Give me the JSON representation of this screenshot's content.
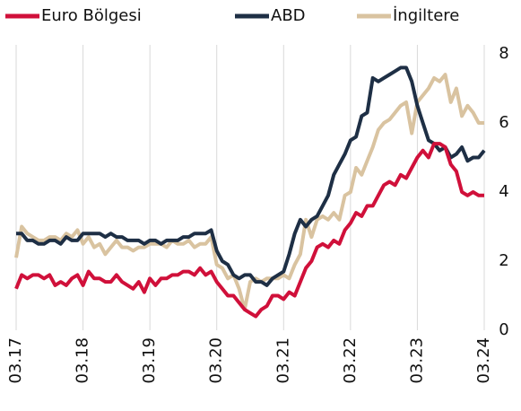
{
  "chart_data": {
    "type": "line",
    "categories": [
      "03.17",
      null,
      null,
      null,
      null,
      null,
      null,
      null,
      null,
      null,
      null,
      null,
      "03.18",
      null,
      null,
      null,
      null,
      null,
      null,
      null,
      null,
      null,
      null,
      null,
      "03.19",
      null,
      null,
      null,
      null,
      null,
      null,
      null,
      null,
      null,
      null,
      null,
      "03.20",
      null,
      null,
      null,
      null,
      null,
      null,
      null,
      null,
      null,
      null,
      null,
      "03.21",
      null,
      null,
      null,
      null,
      null,
      null,
      null,
      null,
      null,
      null,
      null,
      "03.22",
      null,
      null,
      null,
      null,
      null,
      null,
      null,
      null,
      null,
      null,
      null,
      "03.23",
      null,
      null,
      null,
      null,
      null,
      null,
      null,
      null,
      null,
      null,
      null,
      "03.24"
    ],
    "series": [
      {
        "name": "Euro Bölgesi",
        "color": "#d0103a",
        "values": [
          1.2,
          1.6,
          1.5,
          1.6,
          1.6,
          1.5,
          1.6,
          1.3,
          1.4,
          1.3,
          1.5,
          1.6,
          1.3,
          1.7,
          1.5,
          1.5,
          1.4,
          1.4,
          1.6,
          1.4,
          1.3,
          1.2,
          1.4,
          1.1,
          1.5,
          1.3,
          1.5,
          1.5,
          1.6,
          1.6,
          1.7,
          1.7,
          1.6,
          1.8,
          1.6,
          1.7,
          1.4,
          1.2,
          1.0,
          1.0,
          0.8,
          0.6,
          0.5,
          0.4,
          0.6,
          0.7,
          1.0,
          1.0,
          0.9,
          1.1,
          1.0,
          1.4,
          1.8,
          2.0,
          2.4,
          2.5,
          2.4,
          2.6,
          2.5,
          2.9,
          3.1,
          3.4,
          3.3,
          3.6,
          3.6,
          3.9,
          4.2,
          4.3,
          4.2,
          4.5,
          4.4,
          4.7,
          5.0,
          5.2,
          5.0,
          5.4,
          5.4,
          5.3,
          4.8,
          4.6,
          4.0,
          3.9,
          4.0,
          3.9,
          3.9
        ]
      },
      {
        "name": "ABD",
        "color": "#1e2f45",
        "values": [
          2.8,
          2.8,
          2.6,
          2.6,
          2.5,
          2.5,
          2.6,
          2.6,
          2.5,
          2.7,
          2.6,
          2.6,
          2.8,
          2.8,
          2.8,
          2.8,
          2.7,
          2.8,
          2.7,
          2.7,
          2.6,
          2.6,
          2.6,
          2.5,
          2.6,
          2.6,
          2.5,
          2.6,
          2.6,
          2.6,
          2.7,
          2.7,
          2.8,
          2.8,
          2.8,
          2.9,
          2.3,
          2.0,
          1.9,
          1.6,
          1.5,
          1.6,
          1.6,
          1.4,
          1.4,
          1.3,
          1.5,
          1.6,
          1.7,
          2.2,
          2.8,
          3.2,
          3.0,
          3.2,
          3.3,
          3.6,
          3.9,
          4.5,
          4.8,
          5.1,
          5.5,
          5.6,
          6.2,
          6.3,
          7.3,
          7.2,
          7.3,
          7.4,
          7.5,
          7.6,
          7.6,
          7.2,
          6.5,
          6.0,
          5.5,
          5.4,
          5.2,
          5.3,
          5.0,
          5.1,
          5.3,
          4.9,
          5.0,
          5.0,
          5.2
        ]
      },
      {
        "name": "İngiltere",
        "color": "#d9c3a0",
        "values": [
          2.1,
          3.0,
          2.8,
          2.7,
          2.6,
          2.6,
          2.7,
          2.7,
          2.6,
          2.8,
          2.7,
          2.9,
          2.5,
          2.7,
          2.4,
          2.5,
          2.2,
          2.4,
          2.6,
          2.4,
          2.4,
          2.3,
          2.4,
          2.4,
          2.5,
          2.5,
          2.5,
          2.4,
          2.6,
          2.5,
          2.5,
          2.6,
          2.4,
          2.5,
          2.5,
          2.7,
          1.9,
          1.8,
          1.5,
          1.6,
          1.2,
          0.6,
          1.4,
          1.5,
          1.4,
          1.5,
          1.5,
          1.5,
          1.6,
          1.5,
          1.9,
          2.2,
          3.2,
          2.7,
          3.2,
          3.3,
          3.2,
          3.4,
          3.2,
          3.9,
          4.0,
          4.7,
          4.5,
          4.9,
          5.3,
          5.8,
          6.0,
          6.1,
          6.3,
          6.5,
          6.6,
          5.7,
          6.6,
          6.8,
          7.0,
          7.3,
          7.2,
          7.4,
          6.6,
          7.0,
          6.2,
          6.5,
          6.3,
          6.0,
          6.0
        ]
      }
    ],
    "ylim": [
      0,
      8
    ],
    "yticks": [
      0,
      2,
      4,
      6,
      8
    ],
    "xgrid": true,
    "legend": "top"
  }
}
